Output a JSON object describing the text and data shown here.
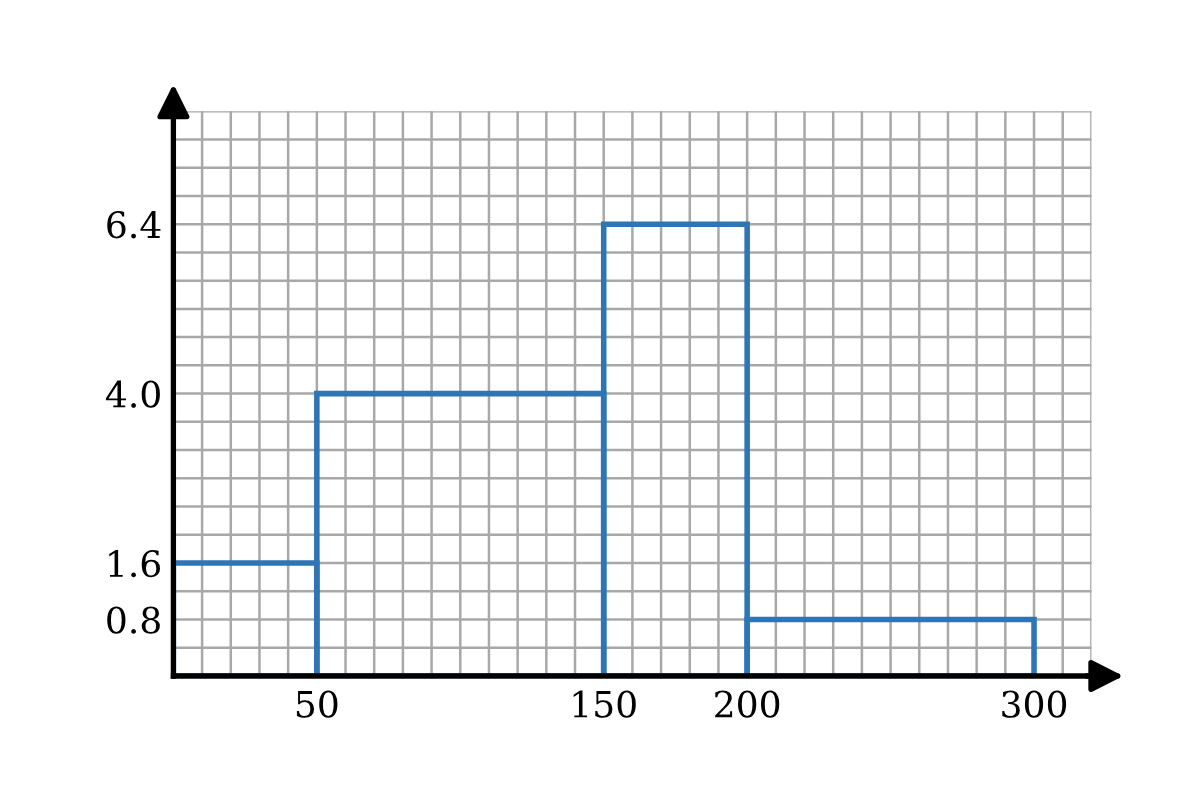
{
  "chart_data": {
    "type": "histogram",
    "bins": [
      0,
      50,
      150,
      200,
      300
    ],
    "values": [
      1.6,
      4.0,
      6.4,
      0.8
    ],
    "color": "#2e75b6",
    "xlim": [
      0,
      320
    ],
    "ylim": [
      0,
      8
    ],
    "xticks": [
      {
        "value": 0,
        "label": null
      },
      {
        "value": 10,
        "label": null
      },
      {
        "value": 20,
        "label": null
      },
      {
        "value": 30,
        "label": null
      },
      {
        "value": 40,
        "label": null
      },
      50,
      {
        "value": 60,
        "label": null
      },
      {
        "value": 70,
        "label": null
      },
      {
        "value": 80,
        "label": null
      },
      {
        "value": 90,
        "label": null
      },
      {
        "value": 100,
        "label": null
      },
      {
        "value": 110,
        "label": null
      },
      {
        "value": 120,
        "label": null
      },
      {
        "value": 130,
        "label": null
      },
      {
        "value": 140,
        "label": null
      },
      150,
      {
        "value": 160,
        "label": null
      },
      {
        "value": 170,
        "label": null
      },
      {
        "value": 180,
        "label": null
      },
      {
        "value": 190,
        "label": null
      },
      200,
      {
        "value": 210,
        "label": null
      },
      {
        "value": 220,
        "label": null
      },
      {
        "value": 230,
        "label": null
      },
      {
        "value": 240,
        "label": null
      },
      {
        "value": 250,
        "label": null
      },
      {
        "value": 260,
        "label": null
      },
      {
        "value": 270,
        "label": null
      },
      {
        "value": 280,
        "label": null
      },
      {
        "value": 290,
        "label": null
      },
      300,
      {
        "value": 310,
        "label": null
      },
      {
        "value": 320,
        "label": null
      }
    ],
    "yticks": [
      {
        "value": 0,
        "label": null
      },
      {
        "value": 0.4,
        "label": null
      },
      0.8,
      {
        "value": 1.2,
        "label": null
      },
      1.6,
      {
        "value": 2.0,
        "label": null
      },
      {
        "value": 2.4,
        "label": null
      },
      {
        "value": 2.8,
        "label": null
      },
      {
        "value": 3.2,
        "label": null
      },
      {
        "value": 3.6,
        "label": null
      },
      {
        "value": 4.0,
        "label": "4.0"
      },
      {
        "value": 4.4,
        "label": null
      },
      {
        "value": 4.8,
        "label": null
      },
      {
        "value": 5.2,
        "label": null
      },
      {
        "value": 5.6,
        "label": null
      },
      {
        "value": 6.0,
        "label": null
      },
      6.4,
      {
        "value": 6.8,
        "label": null
      },
      {
        "value": 7.2,
        "label": null
      },
      {
        "value": 7.6,
        "label": null
      },
      {
        "value": 8.0,
        "label": null
      }
    ],
    "grid": true
  }
}
